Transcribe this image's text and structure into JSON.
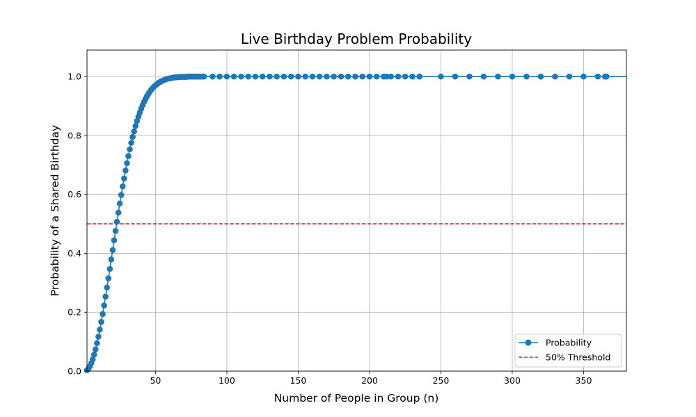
{
  "chart_data": {
    "type": "line",
    "title": "Live Birthday Problem Probability",
    "xlabel": "Number of People in Group (n)",
    "ylabel": "Probability of a Shared Birthday",
    "xlim": [
      2,
      380
    ],
    "ylim": [
      0,
      1.09
    ],
    "xticks": [
      50,
      100,
      150,
      200,
      250,
      300,
      350
    ],
    "yticks": [
      0.0,
      0.2,
      0.4,
      0.6,
      0.8,
      1.0
    ],
    "grid": true,
    "legend_position": "bottom-right",
    "series": [
      {
        "name": "Probability",
        "color": "#1f77b4",
        "marker": "circle",
        "x": [
          2,
          3,
          4,
          5,
          6,
          7,
          8,
          9,
          10,
          11,
          12,
          13,
          14,
          15,
          16,
          17,
          18,
          19,
          20,
          21,
          22,
          23,
          24,
          25,
          26,
          27,
          28,
          29,
          30,
          31,
          32,
          33,
          34,
          35,
          36,
          37,
          38,
          39,
          40,
          41,
          42,
          43,
          44,
          45,
          46,
          47,
          48,
          49,
          50,
          51,
          52,
          53,
          54,
          55,
          56,
          57,
          58,
          59,
          60,
          61,
          62,
          63,
          64,
          65,
          66,
          67,
          68,
          69,
          70,
          71,
          72,
          73,
          74,
          75,
          76,
          77,
          78,
          79,
          80,
          81,
          82,
          83,
          84,
          90,
          95,
          100,
          105,
          110,
          115,
          120,
          125,
          130,
          135,
          140,
          145,
          150,
          155,
          160,
          165,
          170,
          175,
          180,
          185,
          190,
          195,
          200,
          205,
          210,
          212,
          215,
          220,
          225,
          230,
          235,
          250,
          260,
          270,
          280,
          290,
          300,
          310,
          320,
          330,
          340,
          350,
          360,
          365,
          366
        ],
        "y": [
          0.003,
          0.008,
          0.016,
          0.027,
          0.04,
          0.056,
          0.074,
          0.095,
          0.117,
          0.141,
          0.167,
          0.194,
          0.223,
          0.253,
          0.284,
          0.315,
          0.347,
          0.379,
          0.411,
          0.444,
          0.476,
          0.507,
          0.538,
          0.569,
          0.598,
          0.627,
          0.654,
          0.681,
          0.706,
          0.73,
          0.753,
          0.775,
          0.795,
          0.814,
          0.832,
          0.849,
          0.864,
          0.878,
          0.891,
          0.903,
          0.914,
          0.924,
          0.933,
          0.941,
          0.948,
          0.955,
          0.961,
          0.966,
          0.97,
          0.974,
          0.978,
          0.981,
          0.984,
          0.986,
          0.988,
          0.99,
          0.992,
          0.993,
          0.994,
          0.995,
          0.996,
          0.997,
          0.997,
          0.998,
          0.998,
          0.998,
          0.999,
          0.999,
          0.999,
          0.999,
          0.999,
          1.0,
          1.0,
          1.0,
          1.0,
          1.0,
          1.0,
          1.0,
          1.0,
          1.0,
          1.0,
          1.0,
          1.0,
          1.0,
          1.0,
          1.0,
          1.0,
          1.0,
          1.0,
          1.0,
          1.0,
          1.0,
          1.0,
          1.0,
          1.0,
          1.0,
          1.0,
          1.0,
          1.0,
          1.0,
          1.0,
          1.0,
          1.0,
          1.0,
          1.0,
          1.0,
          1.0,
          1.0,
          1.0,
          1.0,
          1.0,
          1.0,
          1.0,
          1.0,
          1.0,
          1.0,
          1.0,
          1.0,
          1.0,
          1.0,
          1.0,
          1.0,
          1.0,
          1.0,
          1.0,
          1.0,
          1.0,
          1.0
        ]
      },
      {
        "name": "50% Threshold",
        "color": "#d62728",
        "style": "dashed",
        "y_constant": 0.5
      }
    ]
  }
}
